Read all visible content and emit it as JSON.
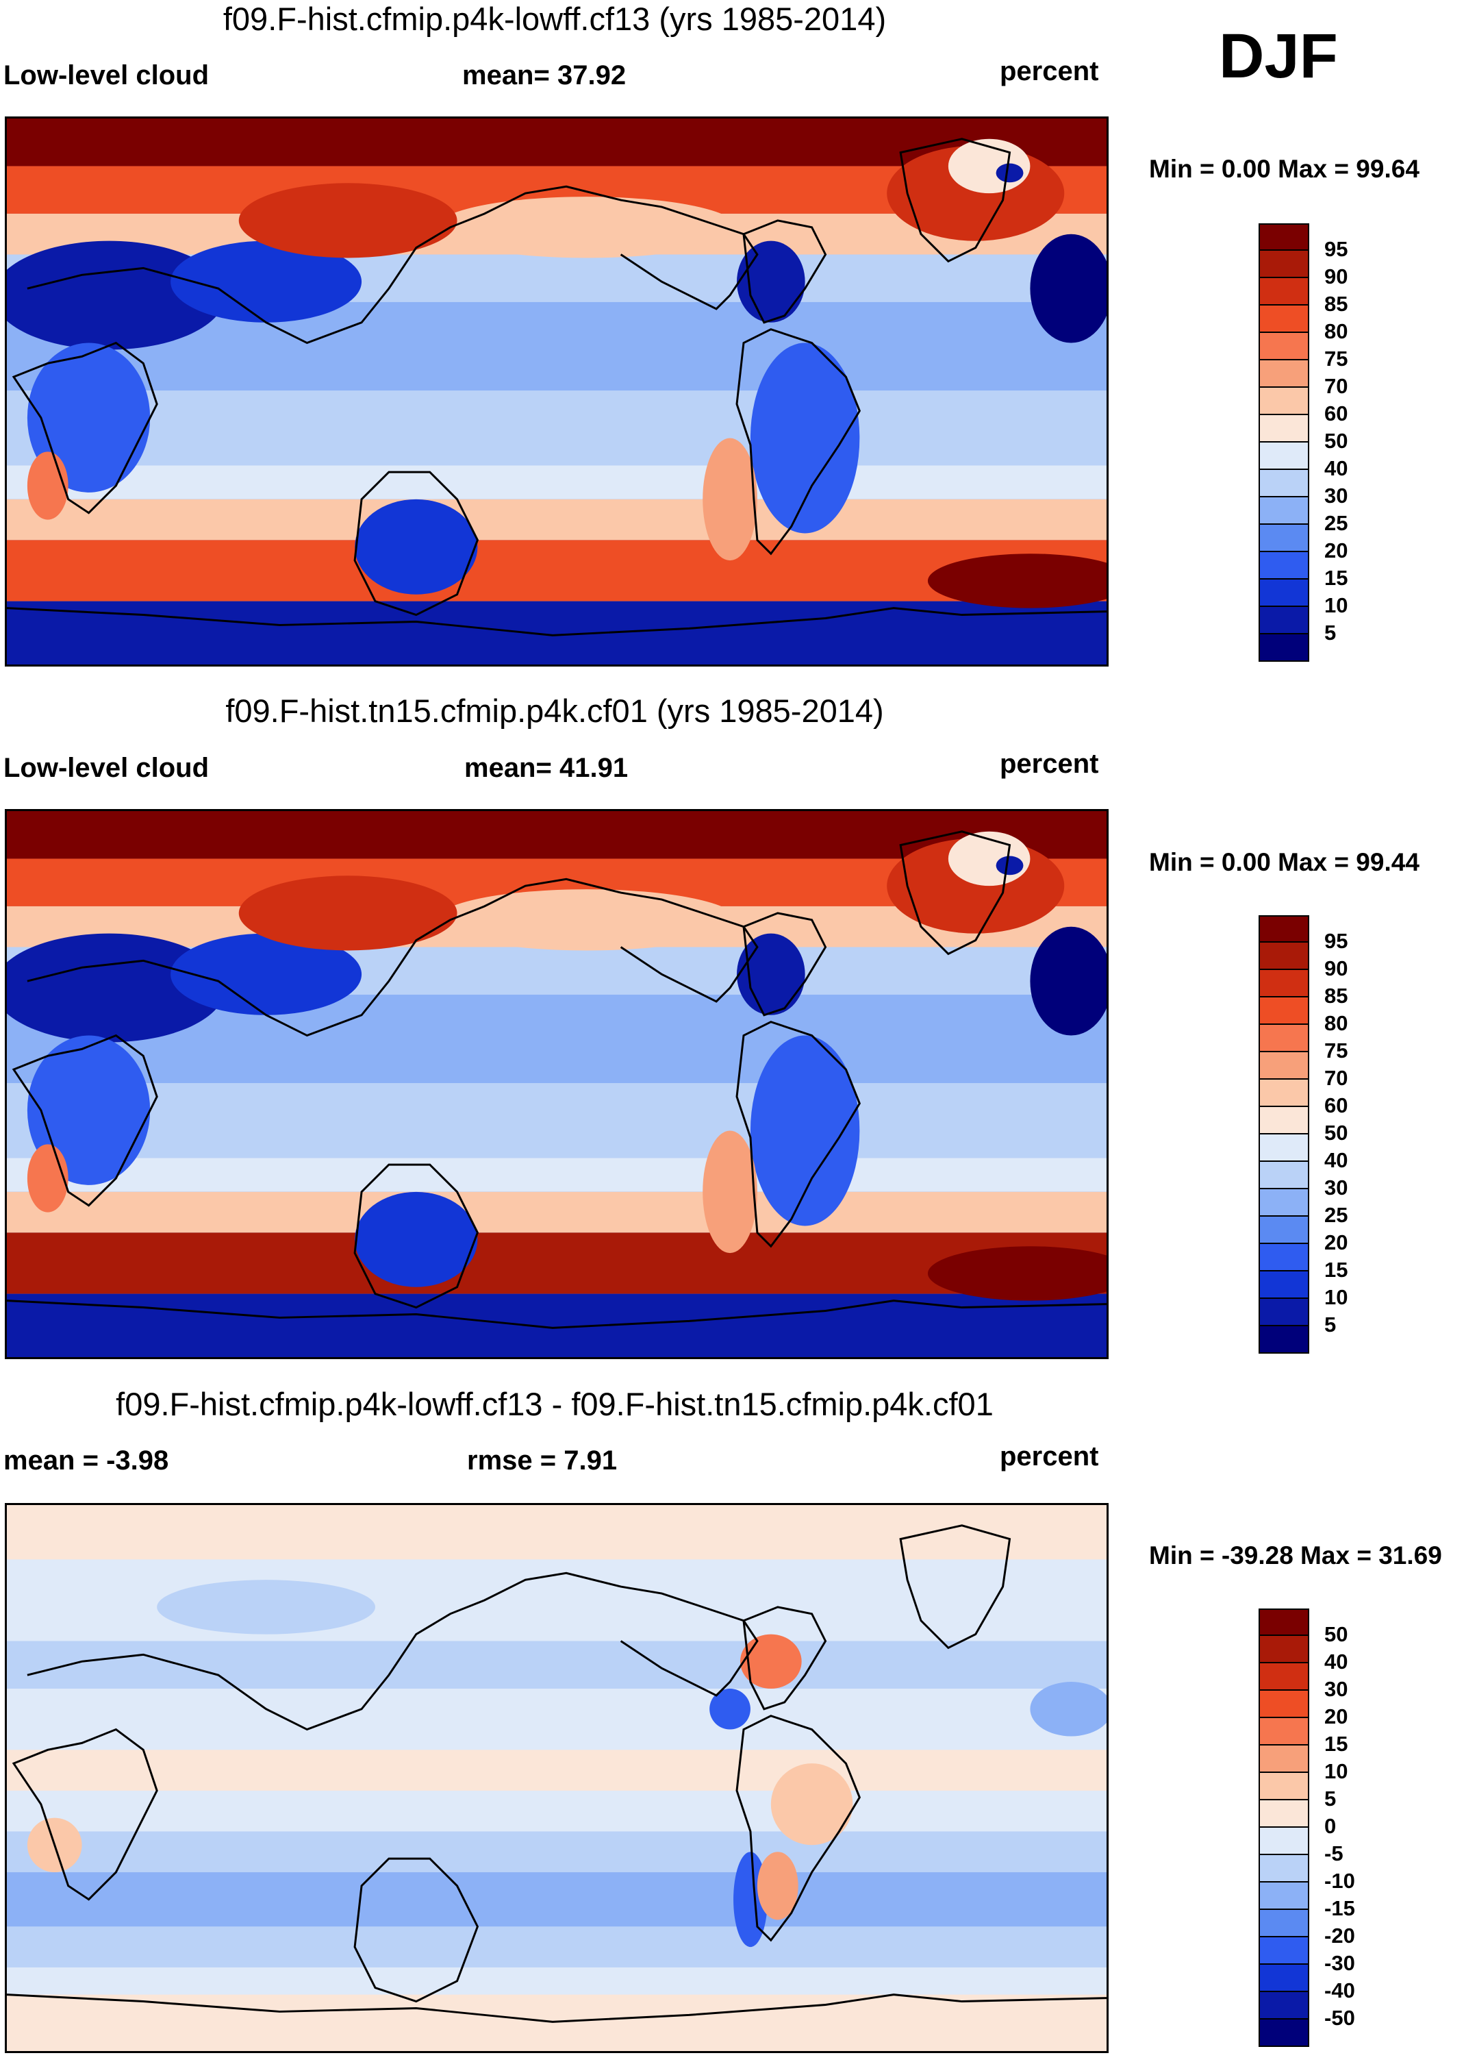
{
  "season": "DJF",
  "units": "percent",
  "colors": {
    "abs": [
      "#00007a",
      "#0a1aa8",
      "#1236d6",
      "#2f5cf0",
      "#5b8af2",
      "#8cb1f6",
      "#bad2f7",
      "#dfeaf9",
      "#fbe6d8",
      "#fbc8a9",
      "#f7a07a",
      "#f6764f",
      "#ee4e25",
      "#d02f12",
      "#a91a08",
      "#7a0000"
    ],
    "diff": [
      "#00007a",
      "#0a1aa8",
      "#1236d6",
      "#2f5cf0",
      "#5b8af2",
      "#8cb1f6",
      "#bad2f7",
      "#dfeaf9",
      "#fbe6d8",
      "#fbc8a9",
      "#f7a07a",
      "#f6764f",
      "#ee4e25",
      "#d02f12",
      "#a91a08",
      "#7a0000"
    ],
    "land_outline": "#000000",
    "background": "#ffffff"
  },
  "chart_data": [
    {
      "type": "heatmap",
      "title": "f09.F-hist.cfmip.p4k-lowff.cf13 (yrs 1985-2014)",
      "left_label": "Low-level cloud",
      "center_label": "mean=  37.92",
      "right_label": "percent",
      "minmax_label": "Min =   0.00 Max =  99.64",
      "mean": 37.92,
      "min": 0.0,
      "max": 99.64,
      "colorbar_levels": [
        "95",
        "90",
        "85",
        "80",
        "75",
        "70",
        "60",
        "50",
        "40",
        "30",
        "25",
        "20",
        "15",
        "10",
        "5"
      ],
      "colormap": "abs"
    },
    {
      "type": "heatmap",
      "title": "f09.F-hist.tn15.cfmip.p4k.cf01 (yrs 1985-2014)",
      "left_label": "Low-level cloud",
      "center_label": "mean=  41.91",
      "right_label": "percent",
      "minmax_label": "Min =   0.00 Max =  99.44",
      "mean": 41.91,
      "min": 0.0,
      "max": 99.44,
      "colorbar_levels": [
        "95",
        "90",
        "85",
        "80",
        "75",
        "70",
        "60",
        "50",
        "40",
        "30",
        "25",
        "20",
        "15",
        "10",
        "5"
      ],
      "colormap": "abs"
    },
    {
      "type": "heatmap",
      "title": "f09.F-hist.cfmip.p4k-lowff.cf13 - f09.F-hist.tn15.cfmip.p4k.cf01",
      "left_label": "mean =  -3.98",
      "center_label": "rmse =   7.91",
      "right_label": "percent",
      "minmax_label": "Min = -39.28 Max =  31.69",
      "mean": -3.98,
      "rmse": 7.91,
      "min": -39.28,
      "max": 31.69,
      "colorbar_levels": [
        "50",
        "40",
        "30",
        "20",
        "15",
        "10",
        "5",
        "0",
        "-5",
        "-10",
        "-15",
        "-20",
        "-30",
        "-40",
        "-50"
      ],
      "colormap": "diff"
    }
  ]
}
